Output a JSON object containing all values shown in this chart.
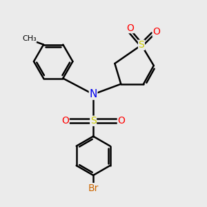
{
  "background_color": "#ebebeb",
  "atom_colors": {
    "C": "#000000",
    "N": "#0000ee",
    "O": "#ff0000",
    "S": "#cccc00",
    "Br": "#cc6600"
  },
  "bond_color": "#000000",
  "bond_width": 1.8,
  "fig_width": 3.0,
  "fig_height": 3.0,
  "dpi": 100,
  "xlim": [
    0,
    10
  ],
  "ylim": [
    0,
    10
  ]
}
